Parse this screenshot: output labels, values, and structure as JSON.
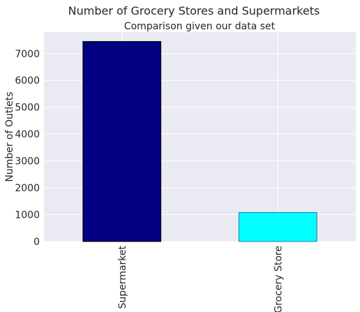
{
  "figure": {
    "suptitle": "Number of Grocery Stores and Supermarkets"
  },
  "chart_data": {
    "type": "bar",
    "title": "Comparison given our data set",
    "xlabel": "",
    "ylabel": "Number of Outlets",
    "categories": [
      "Supermarket",
      "Grocery Store"
    ],
    "values": [
      7450,
      1080
    ],
    "colors": [
      "#000080",
      "#00ffff"
    ],
    "edge_colors": [
      "#000000",
      "#1f77b4"
    ],
    "ylim": [
      0,
      7800
    ],
    "yticks": [
      0,
      1000,
      2000,
      3000,
      4000,
      5000,
      6000,
      7000
    ],
    "grid": true,
    "background_color": "#eaeaf2",
    "grid_color": "#ffffff"
  }
}
